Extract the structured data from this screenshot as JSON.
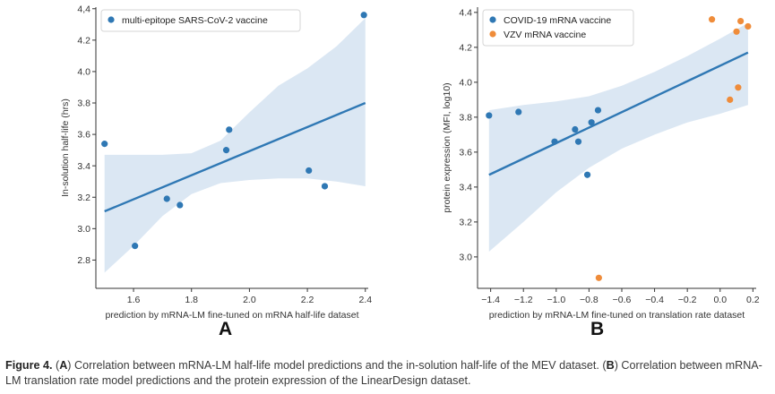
{
  "figure": {
    "panel_a_letter": "A",
    "panel_b_letter": "B",
    "caption": {
      "lead": "Figure 4.",
      "open_a": " (",
      "a": "A",
      "text_a": ") Correlation between mRNA-LM half-life model predictions and the in-solution half-life of the MEV dataset. (",
      "b": "B",
      "text_b": ") Correlation between mRNA-LM translation rate model predictions and the protein expression of the LinearDesign dataset."
    }
  },
  "colors": {
    "blue": "#2f78b4",
    "orange": "#ef8c3a",
    "band": "#dbe7f3",
    "axis": "#333333"
  },
  "chart_data": [
    {
      "type": "scatter",
      "title": "",
      "xlabel": "prediction by mRNA-LM fine-tuned on mRNA half-life dataset",
      "ylabel": "In-solution half-life (hrs)",
      "xlim": [
        1.47,
        2.41
      ],
      "ylim": [
        2.62,
        4.41
      ],
      "xticks": [
        1.6,
        1.8,
        2.0,
        2.2,
        2.4
      ],
      "yticks": [
        2.8,
        3.0,
        3.2,
        3.4,
        3.6,
        3.8,
        4.0,
        4.2,
        4.4
      ],
      "ytick_labels": [
        "2.8",
        "3.0",
        "3.2",
        "3.4",
        "3.6",
        "3.8",
        "4.0",
        "4.2",
        "4,4"
      ],
      "grid": false,
      "legend": "top-left",
      "series": [
        {
          "name": "multi-epitope SARS-CoV-2 vaccine",
          "color": "#2f78b4",
          "points": [
            [
              1.5,
              3.54
            ],
            [
              1.605,
              2.89
            ],
            [
              1.715,
              3.19
            ],
            [
              1.76,
              3.15
            ],
            [
              1.92,
              3.5
            ],
            [
              1.93,
              3.63
            ],
            [
              2.205,
              3.37
            ],
            [
              2.26,
              3.27
            ],
            [
              2.395,
              4.36
            ]
          ]
        }
      ],
      "regression": {
        "x": [
          1.5,
          2.4
        ],
        "y": [
          3.11,
          3.8
        ]
      },
      "ci_band": {
        "x": [
          1.5,
          1.6,
          1.7,
          1.8,
          1.9,
          2.0,
          2.1,
          2.2,
          2.3,
          2.4
        ],
        "upper": [
          3.47,
          3.47,
          3.47,
          3.48,
          3.56,
          3.74,
          3.91,
          4.02,
          4.16,
          4.34
        ],
        "lower": [
          2.72,
          2.89,
          3.08,
          3.22,
          3.29,
          3.31,
          3.32,
          3.32,
          3.3,
          3.27
        ]
      }
    },
    {
      "type": "scatter",
      "title": "",
      "xlabel": "prediction by mRNA-LM fine-tuned on translation rate dataset",
      "ylabel": "protein expression (MFI, log10)",
      "xlim": [
        -1.48,
        0.22
      ],
      "ylim": [
        2.82,
        4.43
      ],
      "xticks": [
        -1.4,
        -1.2,
        -1.0,
        -0.8,
        -0.6,
        -0.4,
        -0.2,
        0.0,
        0.2
      ],
      "xtick_labels": [
        "−1.4",
        "−1.2",
        "−1.0",
        "−0.8",
        "−0.6",
        "−0.4",
        "−0.2",
        "0.0",
        "0.2"
      ],
      "yticks": [
        3.0,
        3.2,
        3.4,
        3.6,
        3.8,
        4.0,
        4.2,
        4.4
      ],
      "ytick_labels": [
        "3.0",
        "3.2",
        "3.4",
        "3.6",
        "3.8",
        "4.0",
        "4.2",
        "4.4"
      ],
      "grid": false,
      "legend": "top-left",
      "series": [
        {
          "name": "COVID-19 mRNA vaccine",
          "color": "#2f78b4",
          "points": [
            [
              -1.41,
              3.81
            ],
            [
              -1.23,
              3.83
            ],
            [
              -1.01,
              3.66
            ],
            [
              -0.885,
              3.73
            ],
            [
              -0.865,
              3.66
            ],
            [
              -0.81,
              3.47
            ],
            [
              -0.785,
              3.77
            ],
            [
              -0.745,
              3.84
            ]
          ]
        },
        {
          "name": "VZV mRNA vaccine",
          "color": "#ef8c3a",
          "points": [
            [
              -0.74,
              2.88
            ],
            [
              -0.05,
              4.36
            ],
            [
              0.06,
              3.9
            ],
            [
              0.1,
              4.29
            ],
            [
              0.11,
              3.97
            ],
            [
              0.125,
              4.35
            ],
            [
              0.17,
              4.32
            ]
          ]
        }
      ],
      "regression": {
        "x": [
          -1.41,
          0.17
        ],
        "y": [
          3.47,
          4.17
        ]
      },
      "ci_band": {
        "x": [
          -1.41,
          -1.2,
          -1.0,
          -0.8,
          -0.6,
          -0.4,
          -0.2,
          0.0,
          0.17
        ],
        "upper": [
          3.84,
          3.87,
          3.89,
          3.92,
          3.98,
          4.06,
          4.15,
          4.25,
          4.34
        ],
        "lower": [
          3.03,
          3.2,
          3.37,
          3.51,
          3.62,
          3.7,
          3.77,
          3.82,
          3.87
        ]
      }
    }
  ]
}
